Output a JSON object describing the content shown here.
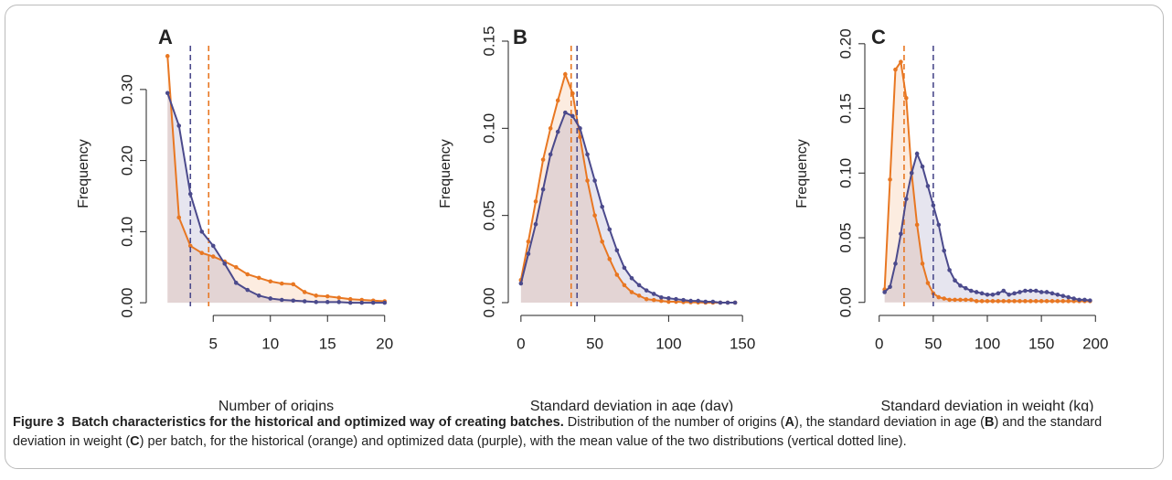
{
  "chart_data": [
    {
      "type": "line",
      "panel": "A",
      "xlabel": "Number of origins",
      "ylabel": "Frequency",
      "xlim": [
        0.5,
        20.5
      ],
      "ylim": [
        -0.005,
        0.368
      ],
      "xticks": [
        5,
        10,
        15,
        20
      ],
      "yticks": [
        {
          "value": 0,
          "label": "0.00"
        },
        {
          "value": 0.1,
          "label": "0.10"
        },
        {
          "value": 0.2,
          "label": "0.20"
        },
        {
          "value": 0.3,
          "label": "0.30"
        }
      ],
      "series": [
        {
          "color": "#e87722",
          "mean": 4.6,
          "x": [
            1,
            2,
            3,
            4,
            5,
            6,
            7,
            8,
            9,
            10,
            11,
            12,
            13,
            14,
            15,
            16,
            17,
            18,
            19,
            20
          ],
          "values": [
            0.347,
            0.12,
            0.08,
            0.07,
            0.065,
            0.058,
            0.05,
            0.04,
            0.035,
            0.03,
            0.027,
            0.026,
            0.015,
            0.01,
            0.009,
            0.007,
            0.005,
            0.004,
            0.003,
            0.002
          ]
        },
        {
          "color": "#4b4a8c",
          "mean": 3.0,
          "x": [
            1,
            2,
            3,
            4,
            5,
            6,
            7,
            8,
            9,
            10,
            11,
            12,
            13,
            14,
            15,
            16,
            17,
            18,
            19,
            20
          ],
          "values": [
            0.295,
            0.249,
            0.153,
            0.1,
            0.08,
            0.055,
            0.028,
            0.018,
            0.01,
            0.006,
            0.004,
            0.003,
            0.002,
            0.001,
            0.001,
            0.001,
            0,
            0,
            0,
            0
          ]
        }
      ]
    },
    {
      "type": "line",
      "panel": "B",
      "xlabel": "Standard deviation in age (day)",
      "ylabel": "Frequency",
      "xlim": [
        -3,
        153
      ],
      "ylim": [
        -0.0021,
        0.15
      ],
      "xticks": [
        0,
        50,
        100,
        150
      ],
      "yticks": [
        {
          "value": 0,
          "label": "0.00"
        },
        {
          "value": 0.05,
          "label": "0.05"
        },
        {
          "value": 0.1,
          "label": "0.10"
        },
        {
          "value": 0.15,
          "label": "0.15"
        }
      ],
      "series": [
        {
          "color": "#e87722",
          "mean": 34,
          "x": [
            0,
            5,
            10,
            15,
            20,
            25,
            30,
            35,
            40,
            45,
            50,
            55,
            60,
            65,
            70,
            75,
            80,
            85,
            90,
            95,
            100,
            105,
            110,
            115,
            120,
            125,
            130,
            135,
            140,
            145
          ],
          "values": [
            0.013,
            0.035,
            0.058,
            0.082,
            0.1,
            0.116,
            0.131,
            0.12,
            0.095,
            0.07,
            0.05,
            0.035,
            0.025,
            0.016,
            0.01,
            0.006,
            0.004,
            0.002,
            0.0015,
            0.001,
            0.0005,
            0.0005,
            0.0003,
            0.0002,
            0.0001,
            0,
            0,
            0,
            0,
            0
          ]
        },
        {
          "color": "#4b4a8c",
          "mean": 38,
          "x": [
            0,
            5,
            10,
            15,
            20,
            25,
            30,
            35,
            40,
            45,
            50,
            55,
            60,
            65,
            70,
            75,
            80,
            85,
            90,
            95,
            100,
            105,
            110,
            115,
            120,
            125,
            130,
            135,
            140,
            145
          ],
          "values": [
            0.011,
            0.028,
            0.045,
            0.065,
            0.085,
            0.098,
            0.109,
            0.107,
            0.1,
            0.085,
            0.07,
            0.055,
            0.042,
            0.03,
            0.02,
            0.014,
            0.01,
            0.007,
            0.005,
            0.003,
            0.0025,
            0.002,
            0.0015,
            0.001,
            0.001,
            0.0005,
            0.0005,
            0,
            0,
            0
          ]
        }
      ]
    },
    {
      "type": "line",
      "panel": "C",
      "xlabel": "Standard deviation in weight (kg)",
      "ylabel": "Frequency",
      "xlim": [
        -4,
        204
      ],
      "ylim": [
        -0.003,
        0.202
      ],
      "xticks": [
        0,
        50,
        100,
        150,
        200
      ],
      "yticks": [
        {
          "value": 0,
          "label": "0.00"
        },
        {
          "value": 0.05,
          "label": "0.05"
        },
        {
          "value": 0.1,
          "label": "0.10"
        },
        {
          "value": 0.15,
          "label": "0.15"
        },
        {
          "value": 0.2,
          "label": "0.20"
        }
      ],
      "series": [
        {
          "color": "#e87722",
          "mean": 23,
          "x": [
            5,
            10,
            15,
            20,
            25,
            30,
            35,
            40,
            45,
            50,
            55,
            60,
            65,
            70,
            75,
            80,
            85,
            90,
            95,
            100,
            105,
            110,
            115,
            120,
            125,
            130,
            135,
            140,
            145,
            150,
            155,
            160,
            165,
            170,
            175,
            180,
            185,
            190,
            195
          ],
          "values": [
            0.01,
            0.095,
            0.18,
            0.186,
            0.158,
            0.1,
            0.06,
            0.03,
            0.015,
            0.007,
            0.004,
            0.003,
            0.002,
            0.002,
            0.002,
            0.002,
            0.002,
            0.001,
            0.001,
            0.001,
            0.001,
            0.001,
            0.001,
            0.001,
            0.001,
            0.001,
            0.001,
            0.001,
            0.001,
            0.001,
            0.001,
            0.001,
            0.001,
            0.001,
            0.001,
            0.001,
            0.001,
            0.001,
            0.001
          ]
        },
        {
          "color": "#4b4a8c",
          "mean": 50,
          "x": [
            5,
            10,
            15,
            20,
            25,
            30,
            35,
            40,
            45,
            50,
            55,
            60,
            65,
            70,
            75,
            80,
            85,
            90,
            95,
            100,
            105,
            110,
            115,
            120,
            125,
            130,
            135,
            140,
            145,
            150,
            155,
            160,
            165,
            170,
            175,
            180,
            185,
            190,
            195
          ],
          "values": [
            0.008,
            0.012,
            0.03,
            0.053,
            0.08,
            0.1,
            0.115,
            0.105,
            0.09,
            0.075,
            0.06,
            0.04,
            0.025,
            0.017,
            0.013,
            0.011,
            0.009,
            0.008,
            0.007,
            0.006,
            0.006,
            0.007,
            0.009,
            0.006,
            0.007,
            0.008,
            0.009,
            0.009,
            0.009,
            0.008,
            0.008,
            0.007,
            0.006,
            0.005,
            0.004,
            0.003,
            0.002,
            0.002,
            0.0015
          ]
        }
      ]
    }
  ],
  "caption": {
    "label": "Figure 3",
    "title": "Batch characteristics for the historical and optimized way of creating batches.",
    "text": [
      "Distribution of the number of origins (",
      "A",
      "), the standard deviation in age (",
      "B",
      ") and the standard deviation in weight (",
      "C",
      ") per batch, for the historical (orange) and optimized data (purple), with the mean value of the two distributions (vertical dotted line)."
    ]
  }
}
